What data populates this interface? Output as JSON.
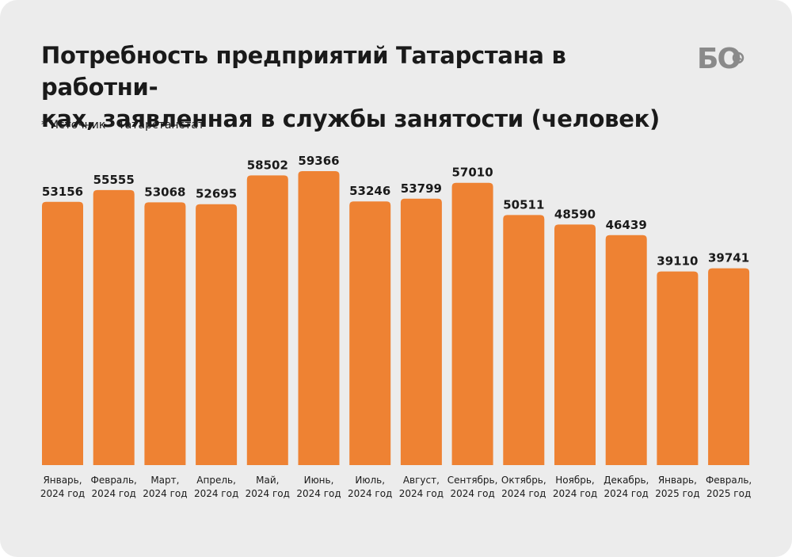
{
  "title_lines": [
    "Потребность предприятий Татарстана в работни-",
    "ках, заявленная в службы занятости (человек)"
  ],
  "source": "* Источник – Татарстанстат",
  "logo": {
    "text": "БО",
    "icon": "clock-icon",
    "color": "#8a8a8a"
  },
  "colors": {
    "bar": "#ee8233",
    "background": "#ececec",
    "text": "#1a1a1a"
  },
  "chart_data": {
    "type": "bar",
    "title": "Потребность предприятий Татарстана в работниках, заявленная в службы занятости (человек)",
    "categories": [
      [
        "Январь,",
        "2024 год"
      ],
      [
        "Февраль,",
        "2024 год"
      ],
      [
        "Март,",
        "2024 год"
      ],
      [
        "Апрель,",
        "2024 год"
      ],
      [
        "Май,",
        "2024 год"
      ],
      [
        "Июнь,",
        "2024 год"
      ],
      [
        "Июль,",
        "2024 год"
      ],
      [
        "Август,",
        "2024 год"
      ],
      [
        "Сентябрь,",
        "2024 год"
      ],
      [
        "Октябрь,",
        "2024 год"
      ],
      [
        "Ноябрь,",
        "2024 год"
      ],
      [
        "Декабрь,",
        "2024 год"
      ],
      [
        "Январь,",
        "2025 год"
      ],
      [
        "Февраль,",
        "2025 год"
      ]
    ],
    "values": [
      53156,
      55555,
      53068,
      52695,
      58502,
      59366,
      53246,
      53799,
      57010,
      50511,
      48590,
      46439,
      39110,
      39741
    ],
    "ylim": [
      0,
      59366
    ],
    "grid": false,
    "legend": "none",
    "data_labels": true
  }
}
